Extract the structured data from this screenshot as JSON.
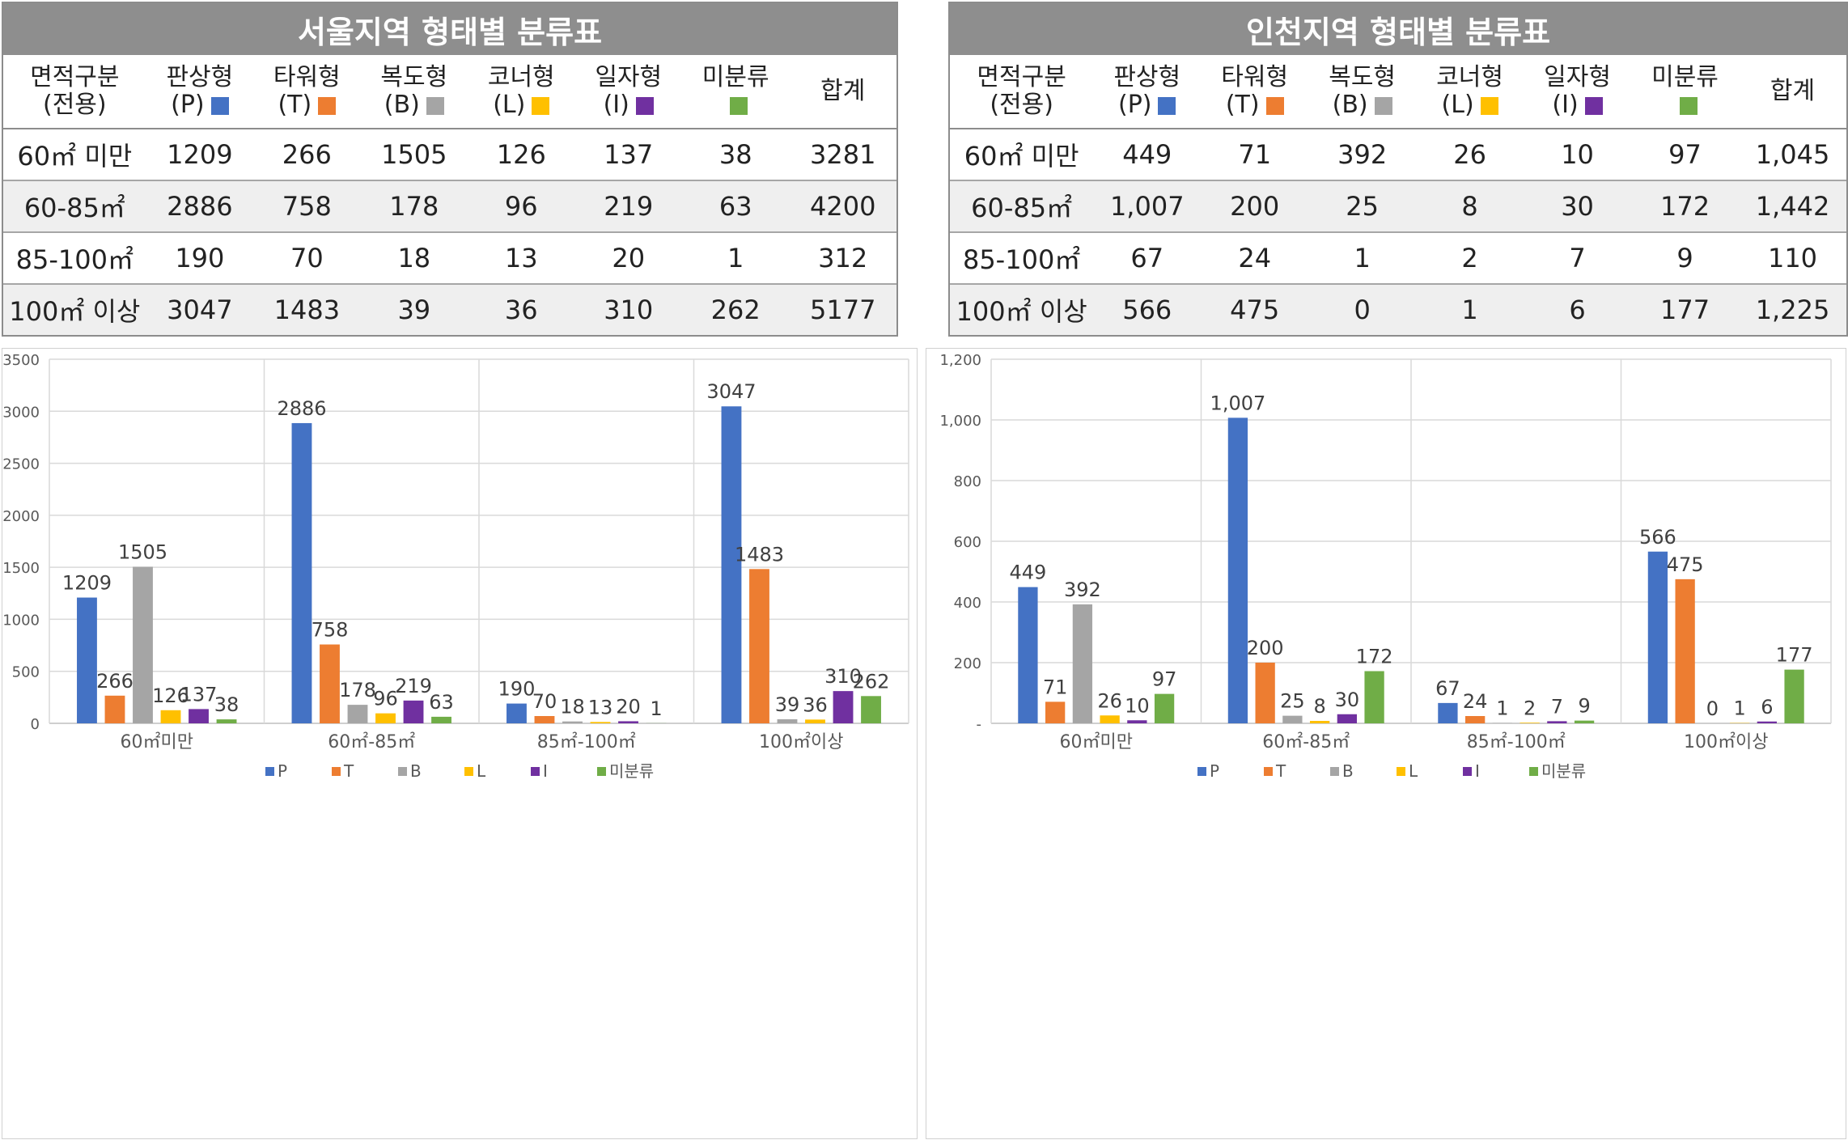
{
  "colors": {
    "P": "#4472c4",
    "T": "#ed7d31",
    "B": "#a5a5a5",
    "L": "#ffc000",
    "I": "#7030a0",
    "U": "#70ad47",
    "header_bg": "#8e8e8e"
  },
  "tables": {
    "seoul": {
      "title": "서울지역 형태별 분류표",
      "headers": [
        {
          "line1": "면적구분",
          "line2": "(전용)",
          "swatch": ""
        },
        {
          "line1": "판상형",
          "line2": "(P)",
          "swatch": "P"
        },
        {
          "line1": "타워형",
          "line2": "(T)",
          "swatch": "T"
        },
        {
          "line1": "복도형",
          "line2": "(B)",
          "swatch": "B"
        },
        {
          "line1": "코너형",
          "line2": "(L)",
          "swatch": "L"
        },
        {
          "line1": "일자형",
          "line2": "(I)",
          "swatch": "I"
        },
        {
          "line1": "미분류",
          "line2": "",
          "swatch": "U"
        },
        {
          "line1": "합계",
          "line2": "",
          "swatch": ""
        }
      ],
      "rows": [
        [
          "60㎡ 미만",
          "1209",
          "266",
          "1505",
          "126",
          "137",
          "38",
          "3281"
        ],
        [
          "60-85㎡",
          "2886",
          "758",
          "178",
          "96",
          "219",
          "63",
          "4200"
        ],
        [
          "85-100㎡",
          "190",
          "70",
          "18",
          "13",
          "20",
          "1",
          "312"
        ],
        [
          "100㎡ 이상",
          "3047",
          "1483",
          "39",
          "36",
          "310",
          "262",
          "5177"
        ]
      ]
    },
    "incheon": {
      "title": "인천지역 형태별 분류표",
      "headers": [
        {
          "line1": "면적구분",
          "line2": "(전용)",
          "swatch": ""
        },
        {
          "line1": "판상형",
          "line2": "(P)",
          "swatch": "P"
        },
        {
          "line1": "타워형",
          "line2": "(T)",
          "swatch": "T"
        },
        {
          "line1": "복도형",
          "line2": "(B)",
          "swatch": "B"
        },
        {
          "line1": "코너형",
          "line2": "(L)",
          "swatch": "L"
        },
        {
          "line1": "일자형",
          "line2": "(I)",
          "swatch": "I"
        },
        {
          "line1": "미분류",
          "line2": "",
          "swatch": "U"
        },
        {
          "line1": "합계",
          "line2": "",
          "swatch": ""
        }
      ],
      "rows": [
        [
          "60㎡ 미만",
          "449",
          "71",
          "392",
          "26",
          "10",
          "97",
          "1,045"
        ],
        [
          "60-85㎡",
          "1,007",
          "200",
          "25",
          "8",
          "30",
          "172",
          "1,442"
        ],
        [
          "85-100㎡",
          "67",
          "24",
          "1",
          "2",
          "7",
          "9",
          "110"
        ],
        [
          "100㎡ 이상",
          "566",
          "475",
          "0",
          "1",
          "6",
          "177",
          "1,225"
        ]
      ]
    }
  },
  "chart_data": [
    {
      "type": "bar",
      "categories": [
        "60㎡미만",
        "60㎡-85㎡",
        "85㎡-100㎡",
        "100㎡이상"
      ],
      "series": [
        {
          "name": "P",
          "color": "#4472c4",
          "values": [
            1209,
            2886,
            190,
            3047
          ]
        },
        {
          "name": "T",
          "color": "#ed7d31",
          "values": [
            266,
            758,
            70,
            1483
          ]
        },
        {
          "name": "B",
          "color": "#a5a5a5",
          "values": [
            1505,
            178,
            18,
            39
          ]
        },
        {
          "name": "L",
          "color": "#ffc000",
          "values": [
            126,
            96,
            13,
            36
          ]
        },
        {
          "name": "I",
          "color": "#7030a0",
          "values": [
            137,
            219,
            20,
            310
          ]
        },
        {
          "name": "미분류",
          "color": "#70ad47",
          "values": [
            38,
            63,
            1,
            262
          ]
        }
      ],
      "ylim": [
        0,
        3500
      ],
      "yticks": [
        "0",
        "500",
        "1000",
        "1500",
        "2000",
        "2500",
        "3000",
        "3500"
      ],
      "grid": true,
      "legend": "bottom"
    },
    {
      "type": "bar",
      "categories": [
        "60㎡미만",
        "60㎡-85㎡",
        "85㎡-100㎡",
        "100㎡이상"
      ],
      "series": [
        {
          "name": "P",
          "color": "#4472c4",
          "values": [
            449,
            1007,
            67,
            566
          ]
        },
        {
          "name": "T",
          "color": "#ed7d31",
          "values": [
            71,
            200,
            24,
            475
          ]
        },
        {
          "name": "B",
          "color": "#a5a5a5",
          "values": [
            392,
            25,
            1,
            0
          ]
        },
        {
          "name": "L",
          "color": "#ffc000",
          "values": [
            26,
            8,
            2,
            1
          ]
        },
        {
          "name": "I",
          "color": "#7030a0",
          "values": [
            10,
            30,
            7,
            6
          ]
        },
        {
          "name": "미분류",
          "color": "#70ad47",
          "values": [
            97,
            172,
            9,
            177
          ]
        }
      ],
      "value_labels": [
        [
          "449",
          "1,007",
          "67",
          "566"
        ],
        [
          "71",
          "200",
          "24",
          "475"
        ],
        [
          "392",
          "25",
          "1",
          "0"
        ],
        [
          "26",
          "8",
          "2",
          "1"
        ],
        [
          "10",
          "30",
          "7",
          "6"
        ],
        [
          "97",
          "172",
          "9",
          "177"
        ]
      ],
      "ylim": [
        0,
        1200
      ],
      "yticks": [
        "-",
        "200",
        "400",
        "600",
        "800",
        "1,000",
        "1,200"
      ],
      "grid": true,
      "legend": "bottom"
    }
  ]
}
